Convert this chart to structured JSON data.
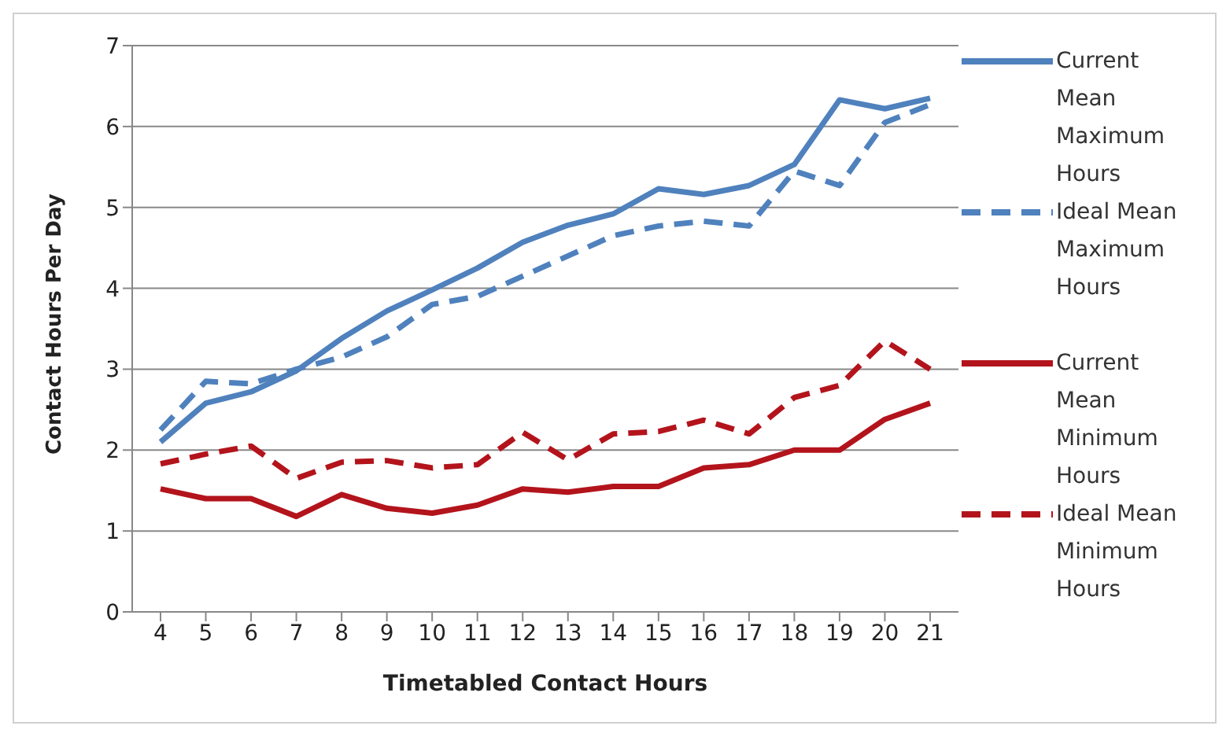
{
  "chart_data": {
    "type": "line",
    "xlabel": "Timetabled Contact Hours",
    "ylabel": "Contact Hours Per Day",
    "categories": [
      "4",
      "5",
      "6",
      "7",
      "8",
      "9",
      "10",
      "11",
      "12",
      "13",
      "14",
      "15",
      "16",
      "17",
      "18",
      "19",
      "20",
      "21"
    ],
    "series": [
      {
        "name": "Current Mean Maximum Hours",
        "color": "#4f81bd",
        "line_style": "solid",
        "values": [
          2.1,
          2.58,
          2.72,
          2.98,
          3.38,
          3.72,
          3.98,
          4.25,
          4.57,
          4.78,
          4.92,
          5.23,
          5.16,
          5.27,
          5.53,
          6.33,
          6.22,
          6.35
        ]
      },
      {
        "name": "Ideal Mean Maximum Hours",
        "color": "#4f81bd",
        "line_style": "dashed",
        "values": [
          2.25,
          2.85,
          2.82,
          3.0,
          3.15,
          3.4,
          3.8,
          3.9,
          4.15,
          4.4,
          4.65,
          4.77,
          4.83,
          4.77,
          5.45,
          5.27,
          6.05,
          6.27
        ]
      },
      {
        "name": "Current Mean Minimum Hours",
        "color": "#b3141c",
        "line_style": "solid",
        "values": [
          1.52,
          1.4,
          1.4,
          1.18,
          1.45,
          1.28,
          1.22,
          1.32,
          1.52,
          1.48,
          1.55,
          1.55,
          1.78,
          1.82,
          2.0,
          2.0,
          2.38,
          2.58
        ]
      },
      {
        "name": "Ideal Mean Minimum Hours",
        "color": "#b3141c",
        "line_style": "dashed",
        "values": [
          1.83,
          1.95,
          2.05,
          1.65,
          1.85,
          1.87,
          1.78,
          1.82,
          2.22,
          1.88,
          2.2,
          2.23,
          2.37,
          2.2,
          2.65,
          2.8,
          3.35,
          3.0
        ]
      }
    ],
    "ylim": [
      0,
      7
    ],
    "yticks": [
      0,
      1,
      2,
      3,
      4,
      5,
      6,
      7
    ],
    "grid": "y",
    "legend": "right",
    "marker": "none"
  }
}
